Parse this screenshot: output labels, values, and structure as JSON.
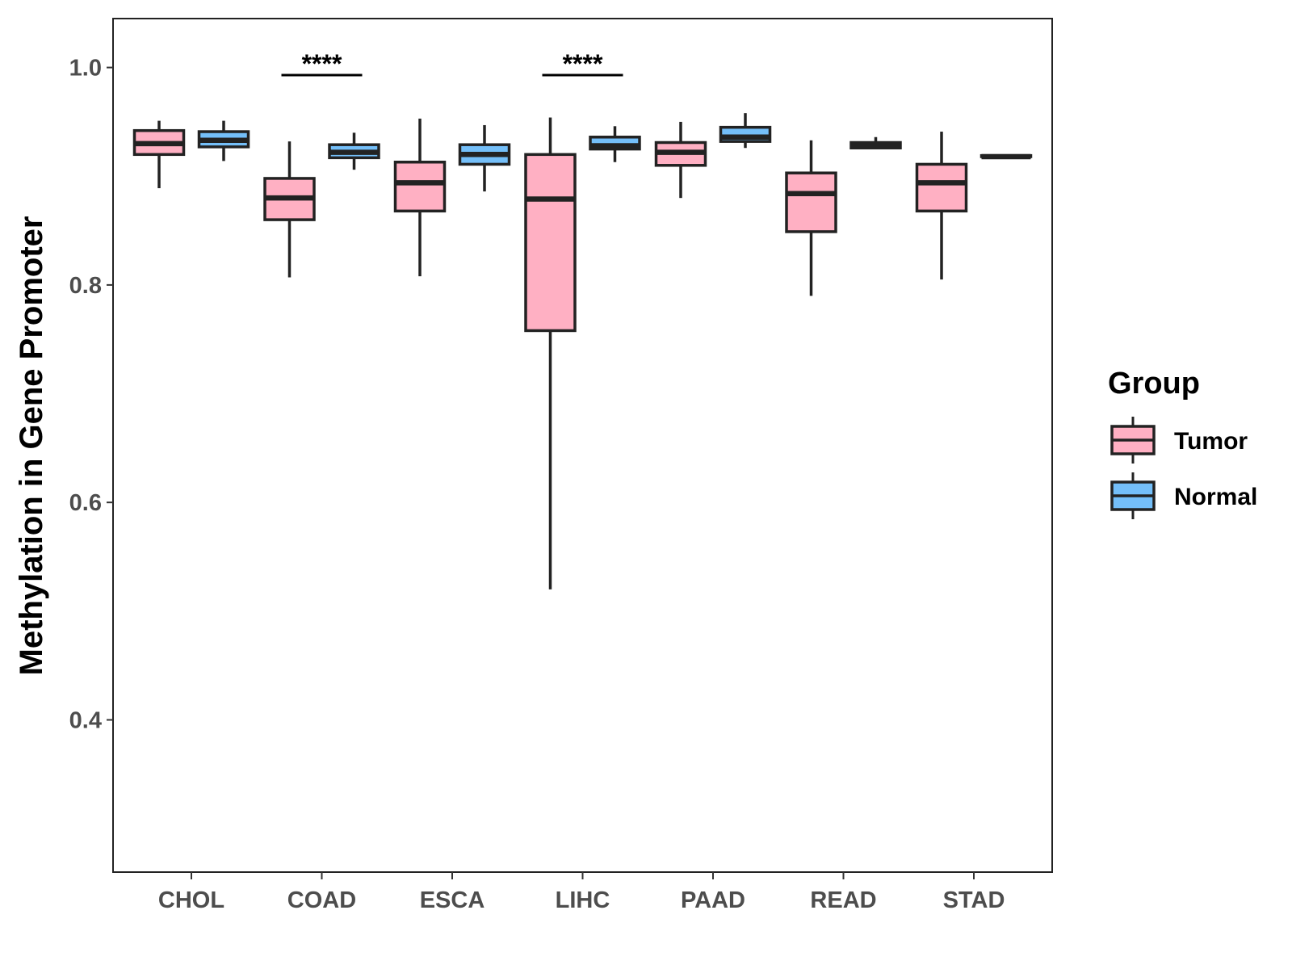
{
  "chart_data": {
    "type": "boxplot",
    "ylabel": "Methylation in Gene Promoter",
    "xlabel": "",
    "ylim": [
      0.26,
      1.045
    ],
    "yticks": [
      0.4,
      0.6,
      0.8,
      1.0
    ],
    "ytick_labels": [
      "0.4",
      "0.6",
      "0.8",
      "1.0"
    ],
    "categories": [
      "CHOL",
      "COAD",
      "ESCA",
      "LIHC",
      "PAAD",
      "READ",
      "STAD"
    ],
    "legend": {
      "title": "Group",
      "position": "right"
    },
    "series": [
      {
        "name": "Tumor",
        "color": "#FFB0C3",
        "boxes": [
          {
            "min": 0.889,
            "q1": 0.92,
            "median": 0.93,
            "q3": 0.942,
            "max": 0.951
          },
          {
            "min": 0.807,
            "q1": 0.86,
            "median": 0.88,
            "q3": 0.898,
            "max": 0.932
          },
          {
            "min": 0.808,
            "q1": 0.868,
            "median": 0.894,
            "q3": 0.913,
            "max": 0.953
          },
          {
            "min": 0.52,
            "q1": 0.758,
            "median": 0.879,
            "q3": 0.92,
            "max": 0.954
          },
          {
            "min": 0.88,
            "q1": 0.91,
            "median": 0.922,
            "q3": 0.931,
            "max": 0.95
          },
          {
            "min": 0.79,
            "q1": 0.849,
            "median": 0.884,
            "q3": 0.903,
            "max": 0.933
          },
          {
            "min": 0.805,
            "q1": 0.868,
            "median": 0.894,
            "q3": 0.911,
            "max": 0.941
          }
        ]
      },
      {
        "name": "Normal",
        "color": "#74BFF9",
        "boxes": [
          {
            "min": 0.914,
            "q1": 0.927,
            "median": 0.933,
            "q3": 0.941,
            "max": 0.951
          },
          {
            "min": 0.906,
            "q1": 0.917,
            "median": 0.922,
            "q3": 0.929,
            "max": 0.94
          },
          {
            "min": 0.886,
            "q1": 0.911,
            "median": 0.92,
            "q3": 0.929,
            "max": 0.947
          },
          {
            "min": 0.913,
            "q1": 0.925,
            "median": 0.928,
            "q3": 0.936,
            "max": 0.946
          },
          {
            "min": 0.926,
            "q1": 0.932,
            "median": 0.936,
            "q3": 0.945,
            "max": 0.958
          },
          {
            "min": 0.925,
            "q1": 0.926,
            "median": 0.928,
            "q3": 0.931,
            "max": 0.936
          },
          {
            "min": 0.918,
            "q1": 0.918,
            "median": 0.918,
            "q3": 0.919,
            "max": 0.92
          }
        ]
      }
    ],
    "annotations": [
      {
        "category": "COAD",
        "label": "****",
        "y": 0.993
      },
      {
        "category": "LIHC",
        "label": "****",
        "y": 0.993
      }
    ]
  }
}
